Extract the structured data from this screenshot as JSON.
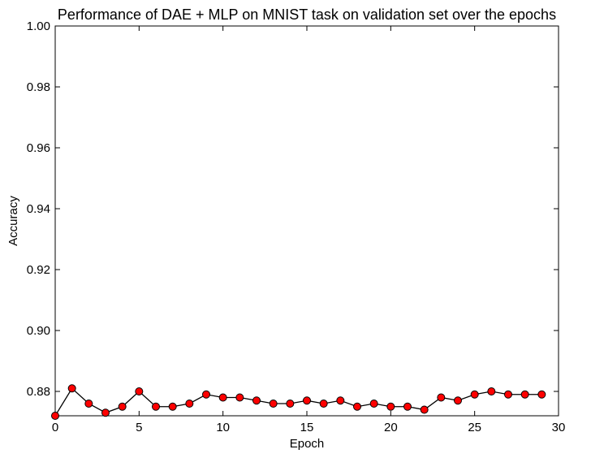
{
  "chart_data": {
    "type": "line",
    "title": "Performance of DAE + MLP on MNIST task on validation set over the epochs",
    "xlabel": "Epoch",
    "ylabel": "Accuracy",
    "xlim": [
      0,
      30
    ],
    "ylim": [
      0.872,
      1.0
    ],
    "x_ticks": [
      "0",
      "5",
      "10",
      "15",
      "20",
      "25",
      "30"
    ],
    "y_ticks": [
      "0.88",
      "0.90",
      "0.92",
      "0.94",
      "0.96",
      "0.98",
      "1.00"
    ],
    "grid": false,
    "legend": "none",
    "line_color": "#000000",
    "marker_color": "#ff0000",
    "series": [
      {
        "x": [
          0,
          1,
          2,
          3,
          4,
          5,
          6,
          7,
          8,
          9,
          10,
          11,
          12,
          13,
          14,
          15,
          16,
          17,
          18,
          19,
          20,
          21,
          22,
          23,
          24,
          25,
          26,
          27,
          28,
          29
        ],
        "values": [
          0.872,
          0.881,
          0.876,
          0.873,
          0.875,
          0.88,
          0.875,
          0.875,
          0.876,
          0.879,
          0.878,
          0.878,
          0.877,
          0.876,
          0.876,
          0.877,
          0.876,
          0.877,
          0.875,
          0.876,
          0.875,
          0.875,
          0.874,
          0.878,
          0.877,
          0.879,
          0.88,
          0.879,
          0.879,
          0.879
        ]
      }
    ]
  }
}
